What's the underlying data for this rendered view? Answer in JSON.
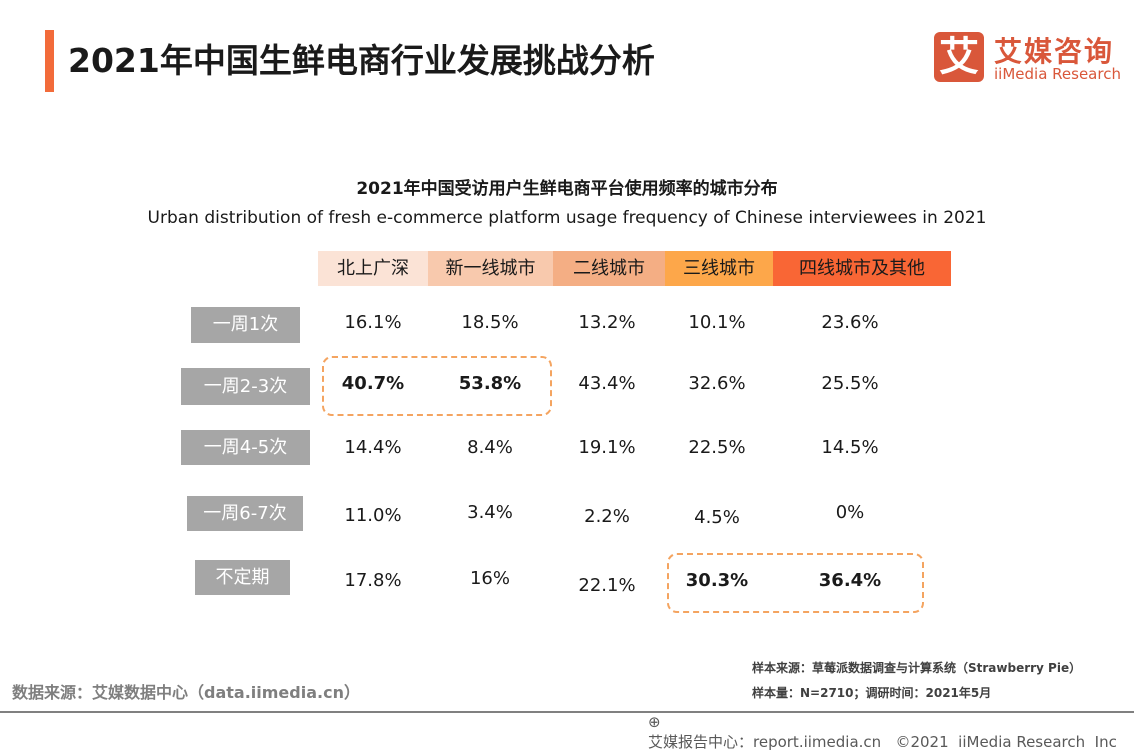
{
  "header": {
    "title": "2021年中国生鲜电商行业发展挑战分析"
  },
  "logo": {
    "mark": "艾",
    "cn": "艾媒咨询",
    "en": "iiMedia Research",
    "color": "#d9573a"
  },
  "chart_data": {
    "type": "table",
    "title": "2021年中国受访用户生鲜电商平台使用频率的城市分布",
    "subtitle": "Urban distribution of fresh e-commerce platform usage frequency of Chinese interviewees in 2021",
    "columns": [
      "北上广深",
      "新一线城市",
      "二线城市",
      "三线城市",
      "四线城市及其他"
    ],
    "column_colors": [
      "#fbe3d6",
      "#f8c9ad",
      "#f4ae84",
      "#fda74a",
      "#f96635"
    ],
    "rows": [
      {
        "label": "一周1次",
        "values": [
          "16.1%",
          "18.5%",
          "13.2%",
          "10.1%",
          "23.6%"
        ]
      },
      {
        "label": "一周2-3次",
        "values": [
          "40.7%",
          "53.8%",
          "43.4%",
          "32.6%",
          "25.5%"
        ]
      },
      {
        "label": "一周4-5次",
        "values": [
          "14.4%",
          "8.4%",
          "19.1%",
          "22.5%",
          "14.5%"
        ]
      },
      {
        "label": "一周6-7次",
        "values": [
          "11.0%",
          "3.4%",
          "2.2%",
          "4.5%",
          "0%"
        ]
      },
      {
        "label": "不定期",
        "values": [
          "17.8%",
          "16%",
          "22.1%",
          "30.3%",
          "36.4%"
        ]
      }
    ],
    "highlighted": [
      [
        "一周2-3次",
        "北上广深"
      ],
      [
        "一周2-3次",
        "新一线城市"
      ],
      [
        "不定期",
        "三线城市"
      ],
      [
        "不定期",
        "四线城市及其他"
      ]
    ]
  },
  "footer": {
    "source": "数据来源：艾媒数据中心（data.iimedia.cn）",
    "sample_source": "样本来源：草莓派数据调查与计算系统（Strawberry Pie）",
    "sample_size": "样本量：N=2710；调研时间：2021年5月",
    "report": "艾媒报告中心：report.iimedia.cn   ©2021  iiMedia Research  Inc"
  }
}
